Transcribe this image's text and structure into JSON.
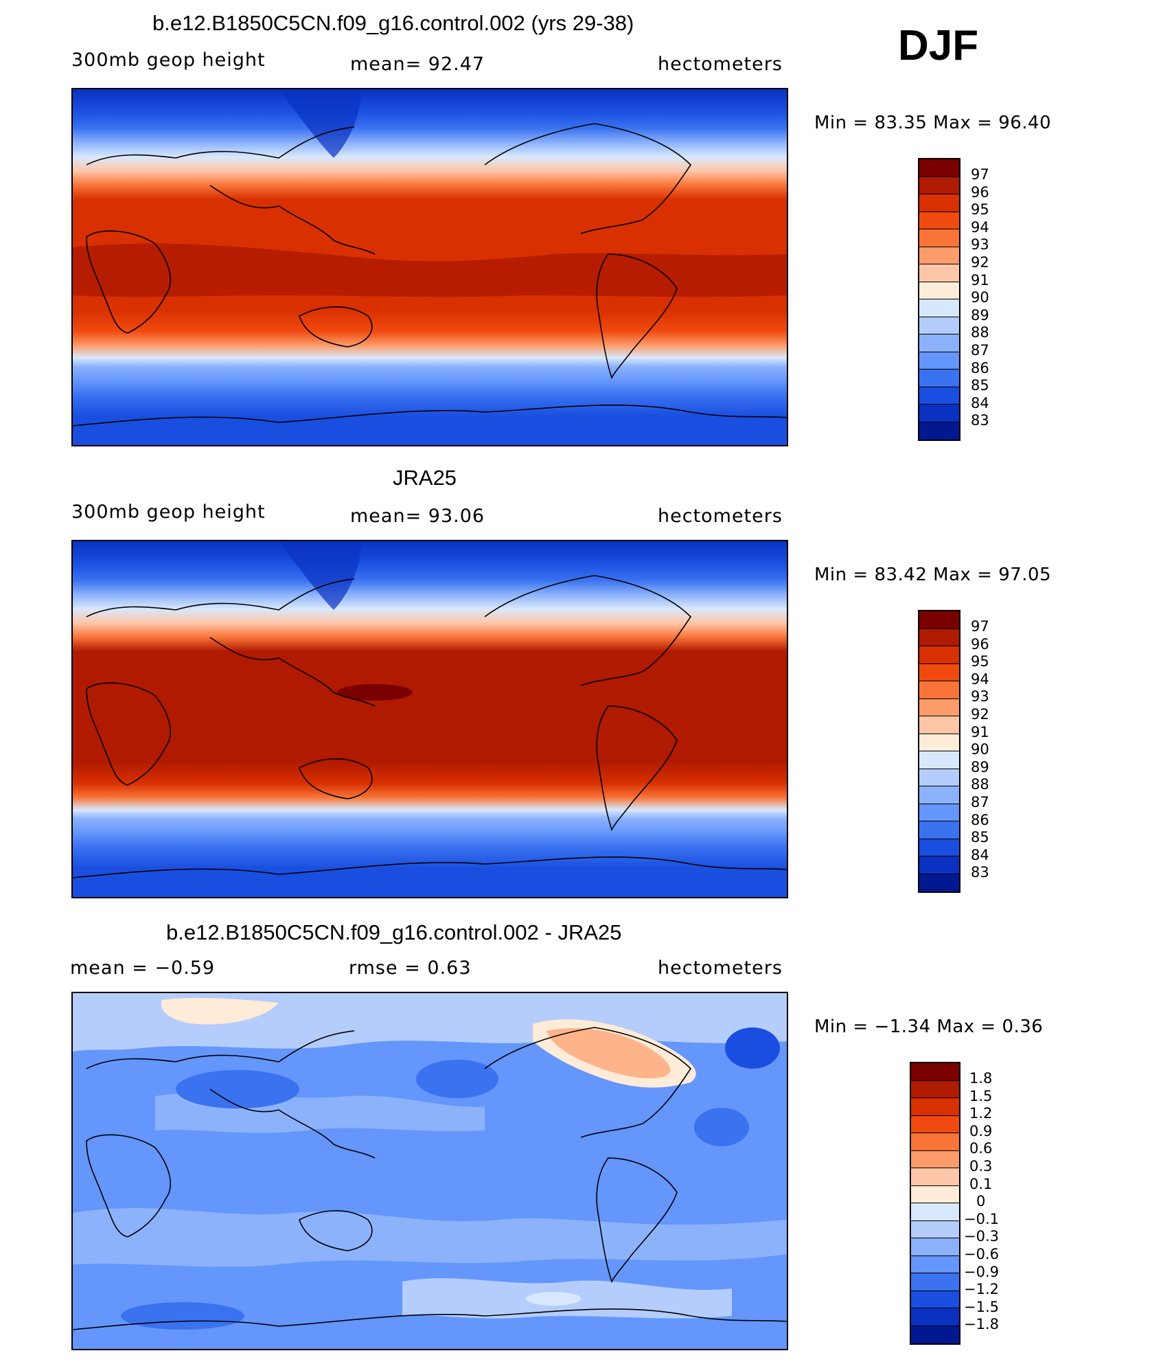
{
  "season": "DJF",
  "panels": [
    {
      "title": "b.e12.B1850C5CN.f09_g16.control.002 (yrs 29-38)",
      "left_label": "300mb geop height",
      "center_label": "mean=   92.47",
      "right_label": "hectometers",
      "minmax": "Min =   83.35 Max =   96.40",
      "colorbar_labels": [
        "97",
        "96",
        "95",
        "94",
        "93",
        "92",
        "91",
        "90",
        "89",
        "88",
        "87",
        "86",
        "85",
        "84",
        "83"
      ]
    },
    {
      "title": "JRA25",
      "left_label": "300mb geop height",
      "center_label": "mean=   93.06",
      "right_label": "hectometers",
      "minmax": "Min =   83.42 Max =   97.05",
      "colorbar_labels": [
        "97",
        "96",
        "95",
        "94",
        "93",
        "92",
        "91",
        "90",
        "89",
        "88",
        "87",
        "86",
        "85",
        "84",
        "83"
      ]
    },
    {
      "title": "b.e12.B1850C5CN.f09_g16.control.002 - JRA25",
      "left_label": "mean =   −0.59",
      "center_label": "rmse =    0.63",
      "right_label": "hectometers",
      "minmax": "Min =  −1.34 Max =    0.36",
      "colorbar_labels": [
        "1.8",
        "1.5",
        "1.2",
        "0.9",
        "0.6",
        "0.3",
        "0.1",
        "0",
        "−0.1",
        "−0.3",
        "−0.6",
        "−0.9",
        "−1.2",
        "−1.5",
        "−1.8"
      ]
    }
  ],
  "colors": {
    "palette": [
      "#7a0000",
      "#b01a00",
      "#d83000",
      "#f04a10",
      "#f87438",
      "#fc9c6a",
      "#fec6a8",
      "#feebd8",
      "#d8e8fc",
      "#b4cdfc",
      "#8cb2fc",
      "#6496fc",
      "#3a72f0",
      "#1a4ee0",
      "#0a32c0",
      "#001890"
    ]
  },
  "chart_data": [
    {
      "type": "heatmap",
      "title": "b.e12.B1850C5CN.f09_g16.control.002 (yrs 29-38)",
      "variable": "300mb geop height",
      "units": "hectometers",
      "mean": 92.47,
      "min": 83.35,
      "max": 96.4,
      "contour_levels": [
        83,
        84,
        85,
        86,
        87,
        88,
        89,
        90,
        91,
        92,
        93,
        94,
        95,
        96,
        97
      ]
    },
    {
      "type": "heatmap",
      "title": "JRA25",
      "variable": "300mb geop height",
      "units": "hectometers",
      "mean": 93.06,
      "min": 83.42,
      "max": 97.05,
      "contour_levels": [
        83,
        84,
        85,
        86,
        87,
        88,
        89,
        90,
        91,
        92,
        93,
        94,
        95,
        96,
        97
      ]
    },
    {
      "type": "heatmap",
      "title": "b.e12.B1850C5CN.f09_g16.control.002 - JRA25",
      "units": "hectometers",
      "mean": -0.59,
      "rmse": 0.63,
      "min": -1.34,
      "max": 0.36,
      "contour_levels": [
        -1.8,
        -1.5,
        -1.2,
        -0.9,
        -0.6,
        -0.3,
        -0.1,
        0,
        0.1,
        0.3,
        0.6,
        0.9,
        1.2,
        1.5,
        1.8
      ]
    }
  ]
}
